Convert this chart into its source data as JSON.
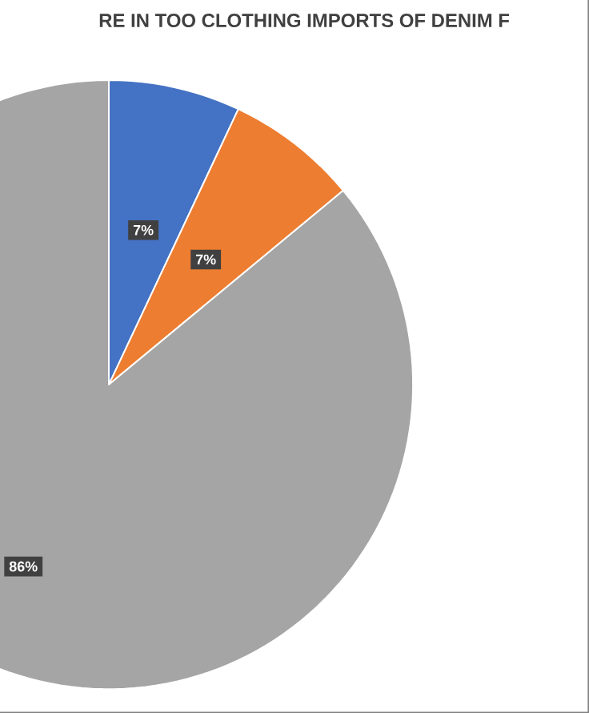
{
  "chart_data": {
    "type": "pie",
    "title": "RE IN TOO CLOTHING IMPORTS OF DENIM F",
    "categories": [
      null,
      null,
      null
    ],
    "values": [
      7,
      7,
      86
    ],
    "value_labels": [
      "7%",
      "7%",
      "86%"
    ],
    "colors": [
      "#4472c4",
      "#ed7d31",
      "#a5a5a5"
    ]
  }
}
